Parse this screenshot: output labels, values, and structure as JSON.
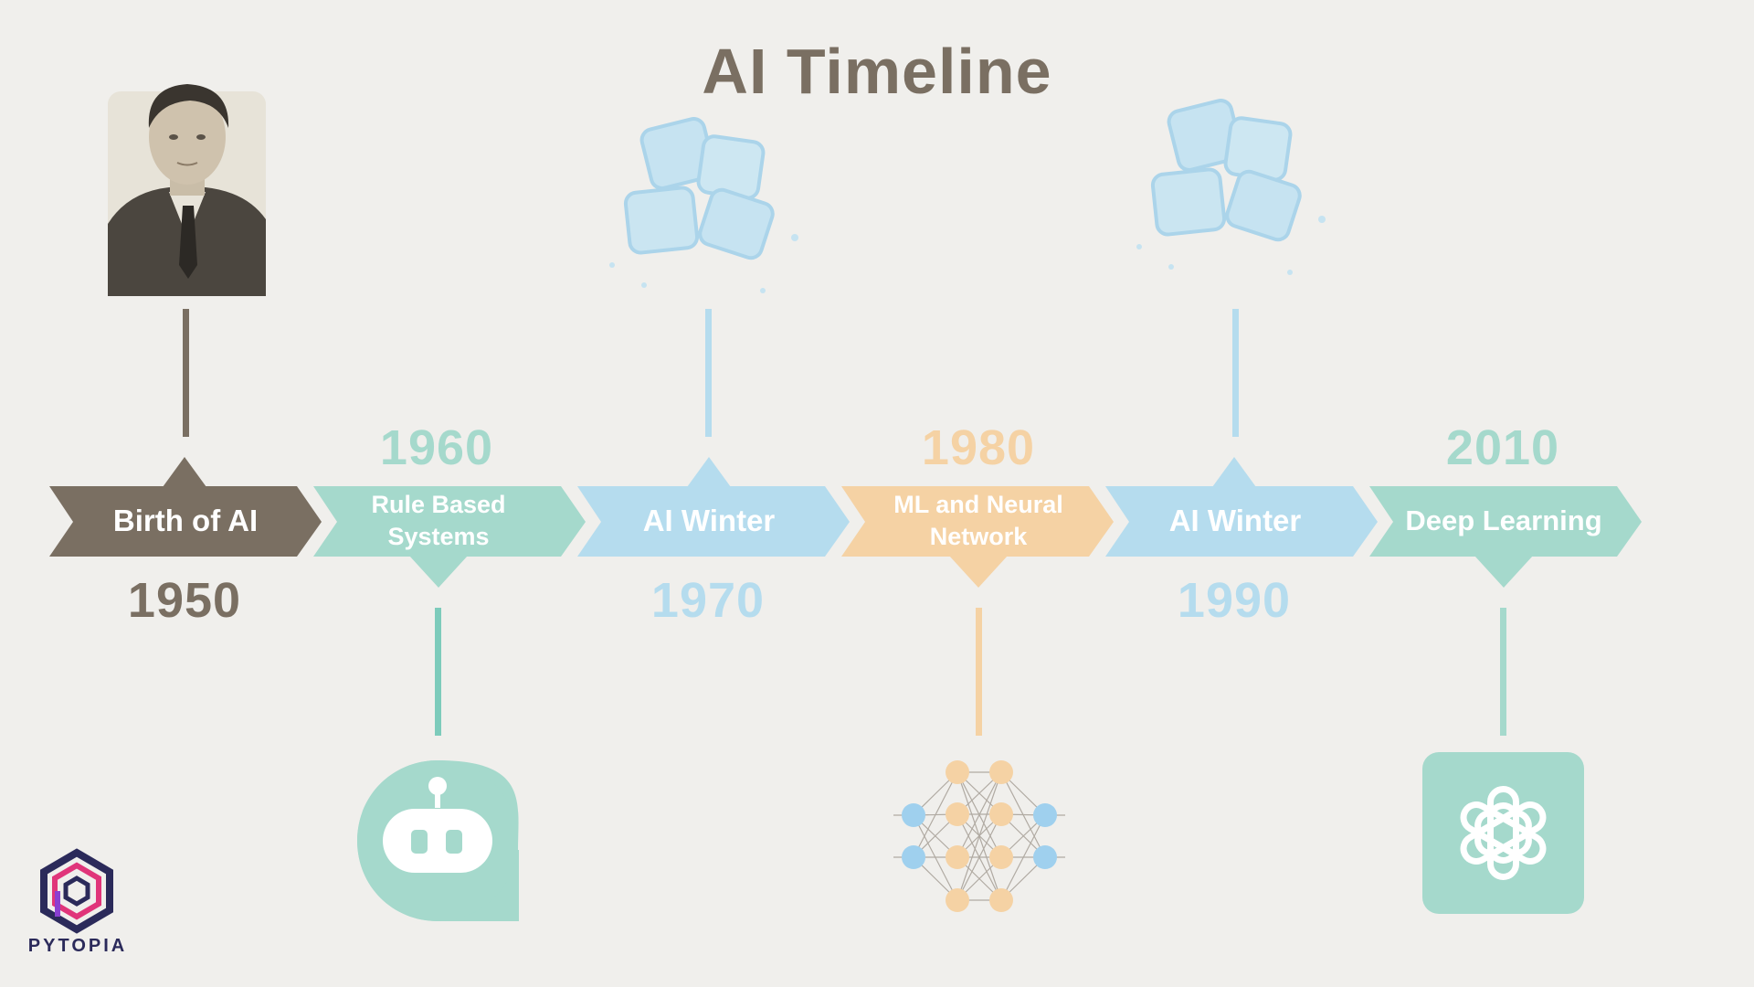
{
  "title": "AI Timeline",
  "events": [
    {
      "year": "1950",
      "label": "Birth of AI",
      "color": "#7a6f62",
      "icon": "alan-turing-portrait"
    },
    {
      "year": "1960",
      "label": "Rule Based Systems",
      "color": "#a5d9cc",
      "icon": "chatbot-robot-icon"
    },
    {
      "year": "1970",
      "label": "AI Winter",
      "color": "#b5dcee",
      "icon": "ice-cubes-icon"
    },
    {
      "year": "1980",
      "label": "ML and Neural Network",
      "color": "#f5d2a4",
      "icon": "neural-network-icon"
    },
    {
      "year": "1990",
      "label": "AI Winter",
      "color": "#b5dcee",
      "icon": "ice-cubes-icon"
    },
    {
      "year": "2010",
      "label": "Deep Learning",
      "color": "#a5d9cc",
      "icon": "openai-logo-icon"
    }
  ],
  "brand": "PYTOPIA"
}
